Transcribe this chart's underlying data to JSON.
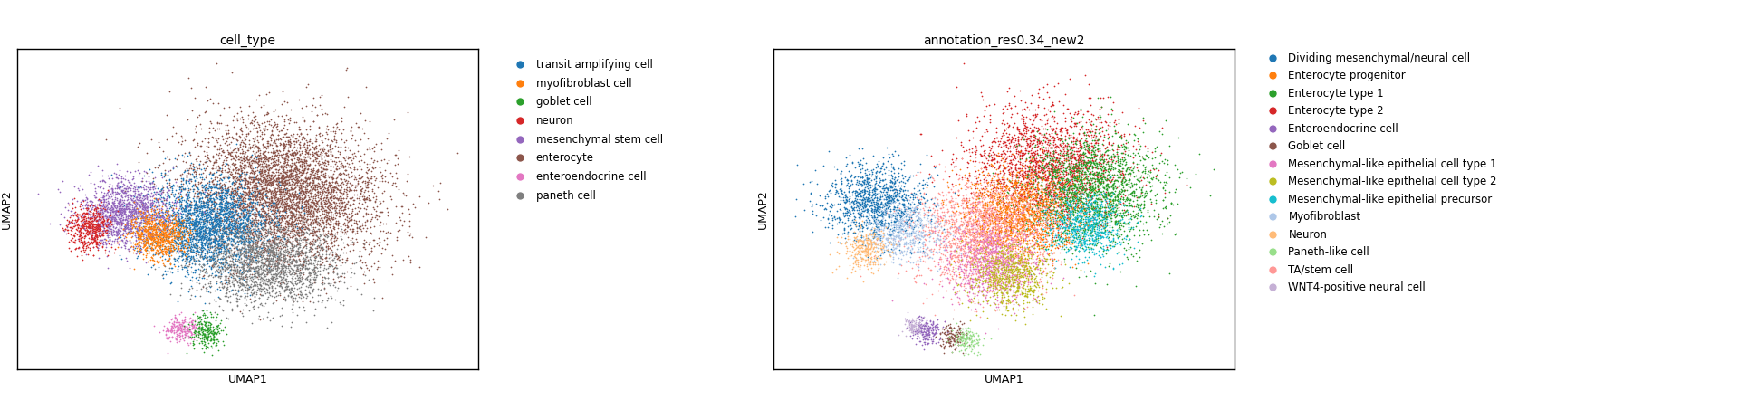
{
  "plot1_title": "cell_type",
  "plot2_title": "annotation_res0.34_new2",
  "xlabel": "UMAP1",
  "ylabel": "UMAP2",
  "cell_type_categories": [
    "transit amplifying cell",
    "myofibroblast cell",
    "goblet cell",
    "neuron",
    "mesenchymal stem cell",
    "enterocyte",
    "enteroendocrine cell",
    "paneth cell"
  ],
  "cell_type_colors": [
    "#1f77b4",
    "#ff7f0e",
    "#2ca02c",
    "#d62728",
    "#9467bd",
    "#8c564b",
    "#e377c2",
    "#7f7f7f"
  ],
  "annotation_categories": [
    "Dividing mesenchymal/neural cell",
    "Enterocyte progenitor",
    "Enterocyte type 1",
    "Enterocyte type 2",
    "Enteroendocrine cell",
    "Goblet cell",
    "Mesenchymal-like epithelial cell type 1",
    "Mesenchymal-like epithelial cell type 2",
    "Mesenchymal-like epithelial precursor",
    "Myofibroblast",
    "Neuron",
    "Paneth-like cell",
    "TA/stem cell",
    "WNT4-positive neural cell"
  ],
  "annotation_colors": [
    "#1f77b4",
    "#ff7f0e",
    "#2ca02c",
    "#d62728",
    "#9467bd",
    "#8c564b",
    "#e377c2",
    "#bcbd22",
    "#17becf",
    "#aec7e8",
    "#ffbb78",
    "#98df8a",
    "#ff9896",
    "#c5b0d5"
  ],
  "background_color": "#ffffff",
  "marker_size": 1.5,
  "legend_marker_size": 7,
  "title_fontsize": 10,
  "label_fontsize": 9,
  "legend_fontsize": 8.5
}
